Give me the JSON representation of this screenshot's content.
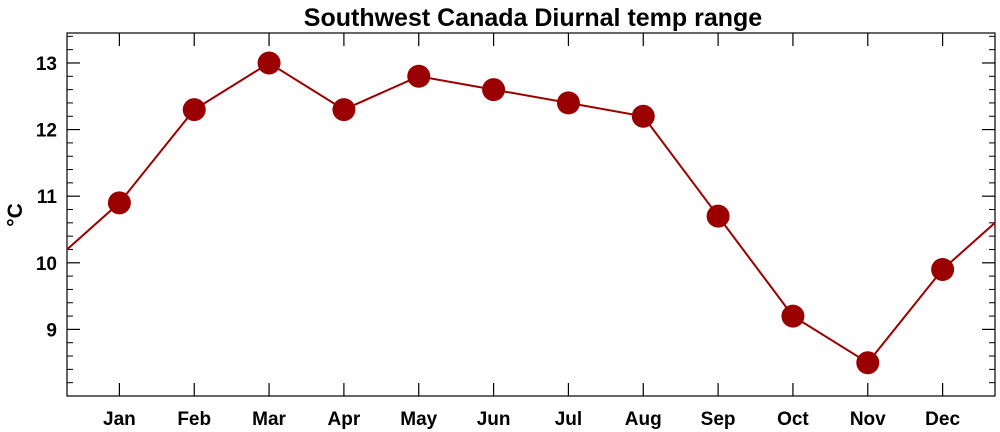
{
  "chart_data": {
    "type": "line",
    "title": "Southwest Canada Diurnal temp range",
    "xlabel": "",
    "ylabel": "°C",
    "categories": [
      "Jan",
      "Feb",
      "Mar",
      "Apr",
      "May",
      "Jun",
      "Jul",
      "Aug",
      "Sep",
      "Oct",
      "Nov",
      "Dec"
    ],
    "series": [
      {
        "values": [
          10.9,
          12.3,
          13.0,
          12.3,
          12.8,
          12.6,
          12.4,
          12.2,
          10.7,
          9.2,
          8.5,
          9.9
        ]
      }
    ],
    "ylim": [
      8.0,
      13.45
    ],
    "yticks": [
      9,
      10,
      11,
      12,
      13
    ],
    "grid": false,
    "legend": "none",
    "wraparound_line": true,
    "colors": {
      "series": "#9b0000",
      "axes": "#000000"
    }
  }
}
